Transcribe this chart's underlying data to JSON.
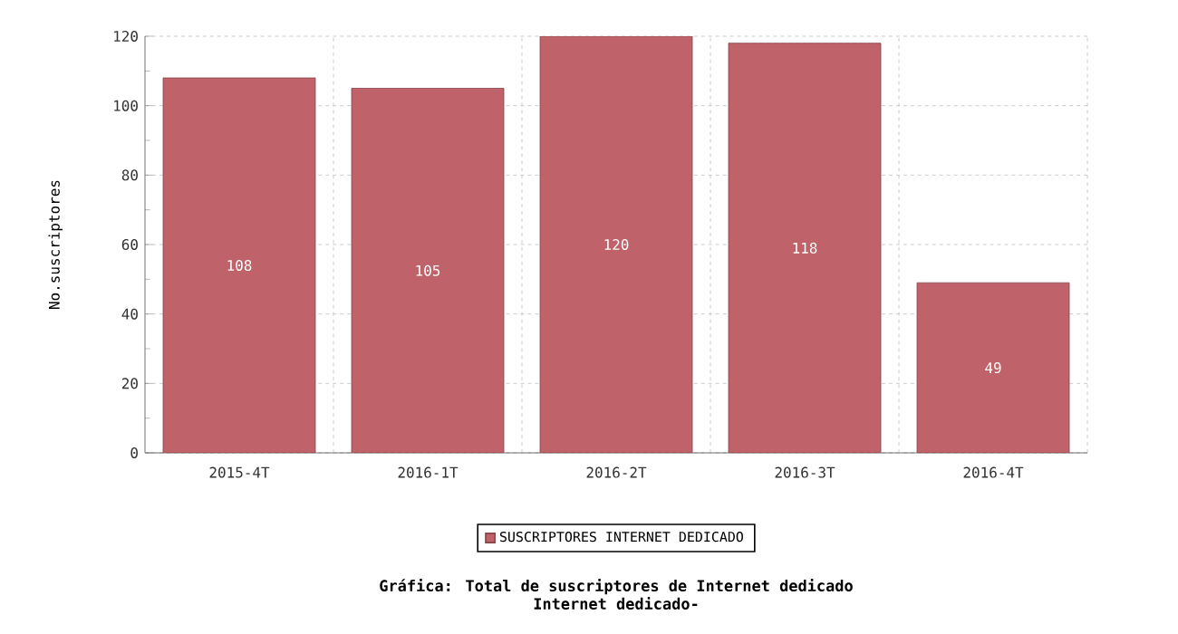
{
  "chart_data": {
    "type": "bar",
    "title": "Gráfica: Total de suscriptores de Internet dedicado",
    "subtitle": "Internet dedicado-",
    "ylabel": "No.suscriptores",
    "categories": [
      "2015-4T",
      "2016-1T",
      "2016-2T",
      "2016-3T",
      "2016-4T"
    ],
    "series": [
      {
        "name": "SUSCRIPTORES INTERNET DEDICADO",
        "color": "#c0626a",
        "values": [
          108,
          105,
          120,
          118,
          49
        ]
      }
    ],
    "ylim": [
      0,
      120
    ],
    "yticks": [
      0,
      20,
      40,
      60,
      80,
      100,
      120
    ],
    "grid": true,
    "legend": "bottom",
    "data_labels": true
  }
}
